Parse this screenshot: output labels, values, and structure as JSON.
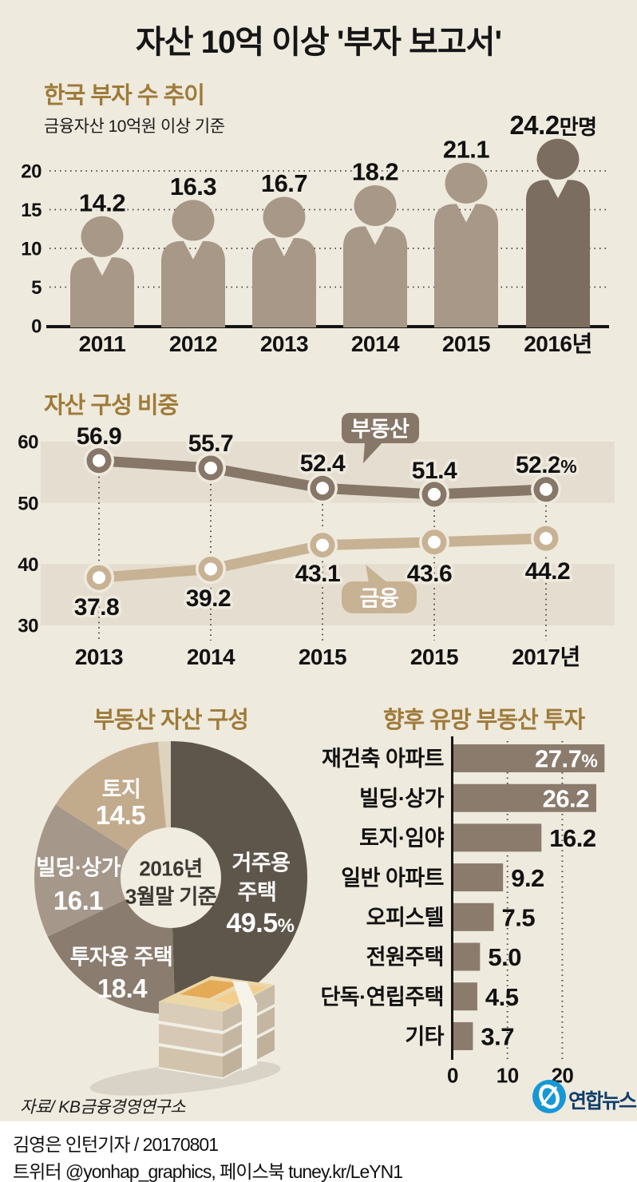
{
  "title": {
    "prefix": "자산 10억 이상 ",
    "quoted": "'부자 보고서'"
  },
  "colors": {
    "background": "#efeade",
    "band": "#e5ded0",
    "heading_gold": "#9e7b39",
    "logo_blue": "#1798d4",
    "agency_navy": "#113e6b"
  },
  "chart_data": [
    {
      "type": "bar",
      "variant": "pictogram-people",
      "title": "한국 부자 수 추이",
      "subtitle": "금융자산 10억원 이상 기준",
      "categories": [
        "2011",
        "2012",
        "2013",
        "2014",
        "2015",
        "2016년"
      ],
      "values": [
        14.2,
        16.3,
        16.7,
        18.2,
        21.1,
        24.2
      ],
      "labels": [
        "14.2",
        "16.3",
        "16.7",
        "18.2",
        "21.1",
        "24.2"
      ],
      "last_value_suffix": "만명",
      "yticks": [
        0,
        5,
        10,
        15,
        20
      ],
      "ylim": [
        0,
        24.5
      ],
      "grid": true,
      "figure_color": "#a79888",
      "highlight_color": "#7b6d5f",
      "highlight_index": 5
    },
    {
      "type": "line",
      "title": "자산 구성 비중",
      "categories": [
        "2013",
        "2014",
        "2015",
        "2015",
        "2017년"
      ],
      "series": [
        {
          "name": "부동산",
          "values": [
            56.9,
            55.7,
            52.4,
            51.4,
            52.2
          ],
          "labels": [
            "56.9",
            "55.7",
            "52.4",
            "51.4",
            "52.2"
          ],
          "last_suffix": "%",
          "color": "#877768"
        },
        {
          "name": "금융",
          "values": [
            37.8,
            39.2,
            43.1,
            43.6,
            44.2
          ],
          "labels": [
            "37.8",
            "39.2",
            "43.1",
            "43.6",
            "44.2"
          ],
          "color": "#c8b294"
        }
      ],
      "yticks": [
        30,
        40,
        50,
        60
      ],
      "ylim": [
        30,
        60
      ],
      "banded_rows": true,
      "legend_position": "speech-bubbles-inline"
    },
    {
      "type": "pie",
      "variant": "donut",
      "title": "부동산 자산 구성",
      "center_label_lines": [
        "2016년",
        "3월말 기준"
      ],
      "slices": [
        {
          "label_lines": [
            "거주용",
            "주택"
          ],
          "value": 49.5,
          "display": "49.5",
          "suffix": "%",
          "color": "#5f564b"
        },
        {
          "label_lines": [
            "투자용 주택"
          ],
          "value": 18.4,
          "display": "18.4",
          "color": "#8a7c6e"
        },
        {
          "label_lines": [
            "빌딩·상가"
          ],
          "value": 16.1,
          "display": "16.1",
          "color": "#a5988a"
        },
        {
          "label_lines": [
            "토지"
          ],
          "value": 14.5,
          "display": "14.5",
          "color": "#c2ab8d"
        },
        {
          "label_lines": [],
          "value": 1.5,
          "display": "",
          "color": "#ddd3bf"
        }
      ]
    },
    {
      "type": "bar",
      "variant": "horizontal",
      "title": "향후 유망 부동산 투자",
      "categories": [
        "재건축 아파트",
        "빌딩·상가",
        "토지·임야",
        "일반 아파트",
        "오피스텔",
        "전원주택",
        "단독·연립주택",
        "기타"
      ],
      "values": [
        27.7,
        26.2,
        16.2,
        9.2,
        7.5,
        5.0,
        4.5,
        3.7
      ],
      "labels": [
        "27.7",
        "26.2",
        "16.2",
        "9.2",
        "7.5",
        "5.0",
        "4.5",
        "3.7"
      ],
      "first_value_suffix": "%",
      "inside_label_count": 2,
      "xticks": [
        0,
        10,
        20
      ],
      "xlim": [
        0,
        29
      ],
      "bar_color": "#8a7b6d"
    }
  ],
  "footer": {
    "source": "자료/ KB금융경영연구소",
    "agency": "연합뉴스",
    "credit_line": "김영은 인턴기자 / 20170801",
    "social_line": "트위터 @yonhap_graphics, 페이스북 tuney.kr/LeYN1"
  }
}
